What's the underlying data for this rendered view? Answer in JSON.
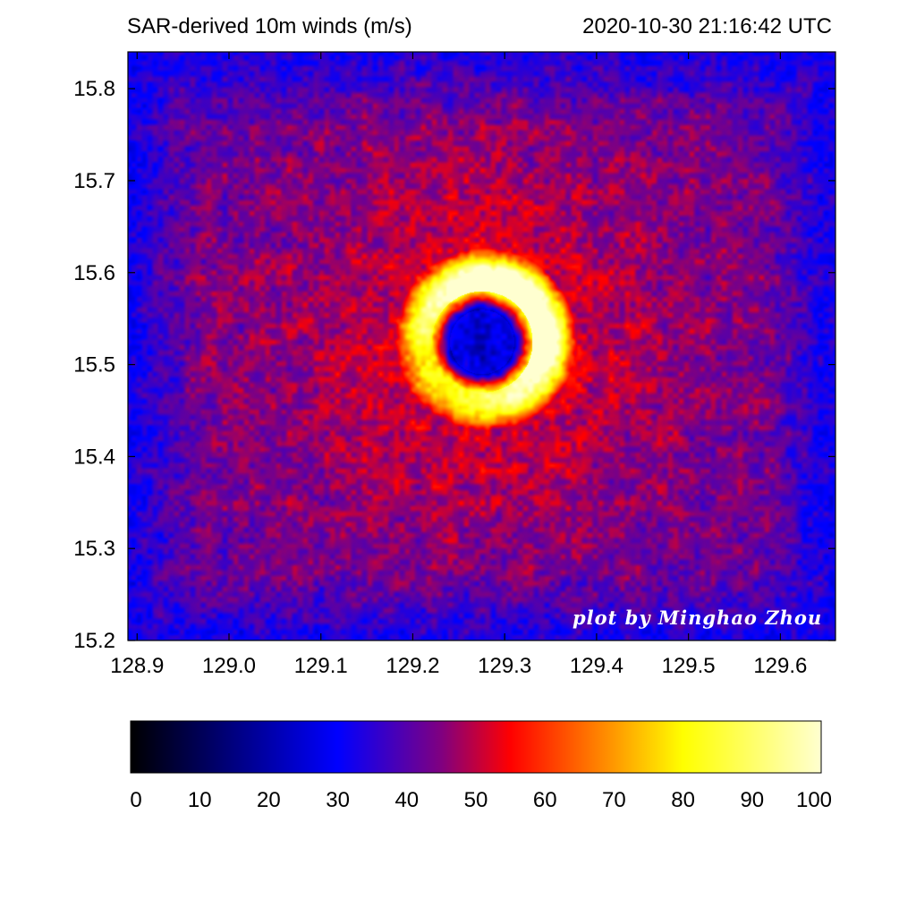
{
  "header": {
    "title_left": "SAR-derived 10m winds (m/s)",
    "title_right": "2020-10-30 21:16:42 UTC"
  },
  "credit": "plot by Minghao Zhou",
  "chart_data": {
    "type": "heatmap",
    "title": "SAR-derived 10m winds (m/s)",
    "timestamp": "2020-10-30 21:16:42 UTC",
    "xlabel": "",
    "ylabel": "",
    "xlim": [
      128.89,
      129.66
    ],
    "ylim": [
      15.2,
      15.84
    ],
    "x_ticks": [
      128.9,
      129.0,
      129.1,
      129.2,
      129.3,
      129.4,
      129.5,
      129.6
    ],
    "x_tick_labels": [
      "128.9",
      "129.0",
      "129.1",
      "129.2",
      "129.3",
      "129.4",
      "129.5",
      "129.6"
    ],
    "y_ticks": [
      15.2,
      15.3,
      15.4,
      15.5,
      15.6,
      15.7,
      15.8
    ],
    "y_tick_labels": [
      "15.2",
      "15.3",
      "15.4",
      "15.5",
      "15.6",
      "15.7",
      "15.8"
    ],
    "field": {
      "eye_center": [
        129.275,
        15.525
      ],
      "eye_radius_deg": 0.035,
      "eye_wind": 22,
      "max_wind": 100,
      "max_wind_radius_deg": 0.065,
      "ambient_wind": 38,
      "edge_wind": 28
    },
    "colorbar": {
      "min": 0,
      "max": 100,
      "ticks": [
        0,
        10,
        20,
        30,
        40,
        50,
        60,
        70,
        80,
        90,
        100
      ],
      "tick_labels": [
        "0",
        "10",
        "20",
        "30",
        "40",
        "50",
        "60",
        "70",
        "80",
        "90",
        "100"
      ],
      "colors": [
        {
          "value": 0,
          "color": "#000000"
        },
        {
          "value": 15,
          "color": "#000080"
        },
        {
          "value": 30,
          "color": "#0000ff"
        },
        {
          "value": 45,
          "color": "#800080"
        },
        {
          "value": 55,
          "color": "#ff0000"
        },
        {
          "value": 80,
          "color": "#ffff00"
        },
        {
          "value": 100,
          "color": "#ffffd0"
        }
      ]
    },
    "grid": false
  }
}
